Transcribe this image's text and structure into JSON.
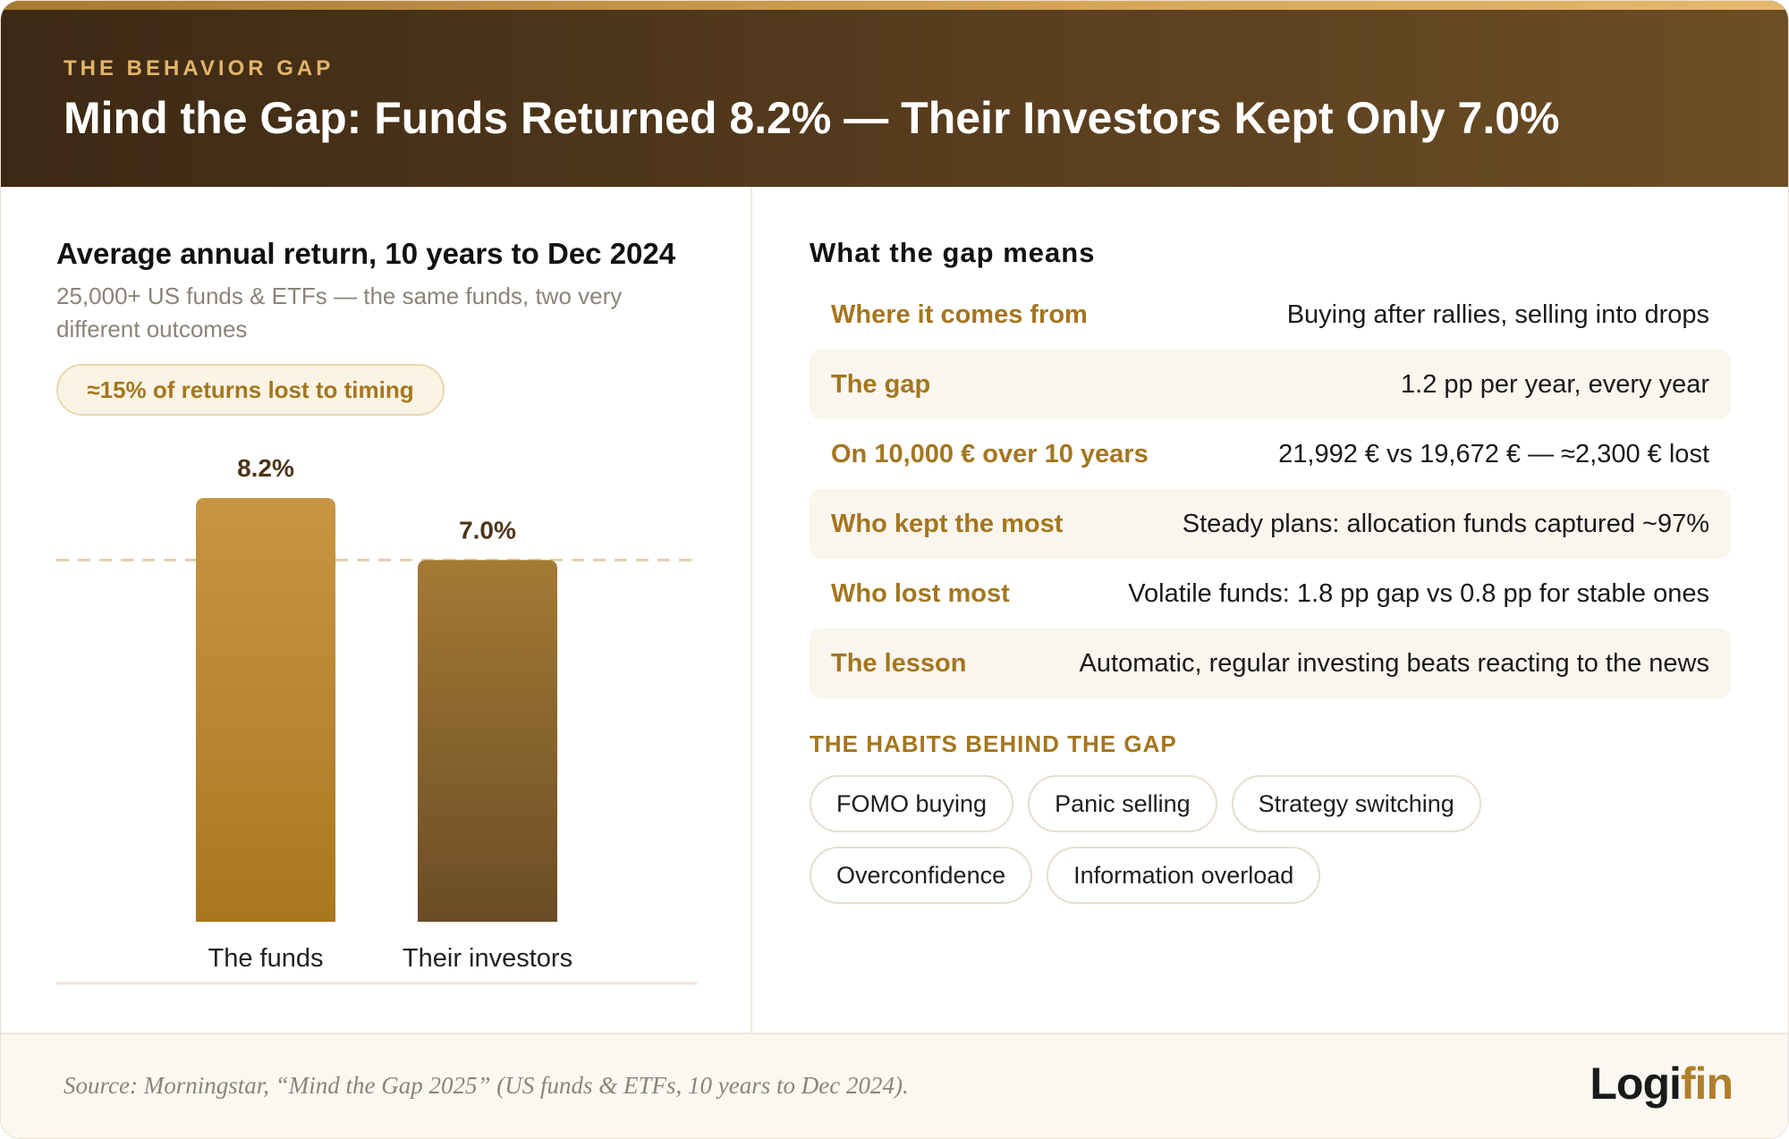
{
  "header": {
    "kicker": "THE BEHAVIOR GAP",
    "title": "Mind the Gap: Funds Returned 8.2% — Their Investors Kept Only 7.0%"
  },
  "chart_panel": {
    "title": "Average annual return, 10 years to Dec 2024",
    "subtitle": "25,000+ US funds & ETFs — the same funds, two very different outcomes",
    "badge": "≈15% of returns lost to timing"
  },
  "chart_data": {
    "type": "bar",
    "title": "Average annual return, 10 years to Dec 2024",
    "categories": [
      "The funds",
      "Their investors"
    ],
    "values": [
      8.2,
      7.0
    ],
    "value_labels": [
      "8.2%",
      "7.0%"
    ],
    "unit": "%",
    "ylim": [
      0,
      8.5
    ],
    "grid": false,
    "reference_line": {
      "value": 7.0,
      "style": "dashed"
    },
    "colors": [
      "#b8862e",
      "#6f5128"
    ]
  },
  "details": {
    "title": "What the gap means",
    "rows": [
      {
        "label": "Where it comes from",
        "value": "Buying after rallies, selling into drops"
      },
      {
        "label": "The gap",
        "value": "1.2 pp per year, every year"
      },
      {
        "label": "On 10,000 € over 10 years",
        "value": "21,992 € vs 19,672 € — ≈2,300 € lost"
      },
      {
        "label": "Who kept the most",
        "value": "Steady plans: allocation funds captured ~97%"
      },
      {
        "label": "Who lost most",
        "value": "Volatile funds: 1.8 pp gap vs 0.8 pp for stable ones"
      },
      {
        "label": "The lesson",
        "value": "Automatic, regular investing beats reacting to the news"
      }
    ]
  },
  "habits": {
    "title": "THE HABITS BEHIND THE GAP",
    "items": [
      "FOMO buying",
      "Panic selling",
      "Strategy switching",
      "Overconfidence",
      "Information overload"
    ]
  },
  "footer": {
    "source": "Source: Morningstar, “Mind the Gap 2025” (US funds & ETFs, 10 years to Dec 2024).",
    "logo_part1": "Logi",
    "logo_part2": "fin"
  },
  "colors": {
    "accent": "#a4761f",
    "header_dark": "#3c2914"
  }
}
